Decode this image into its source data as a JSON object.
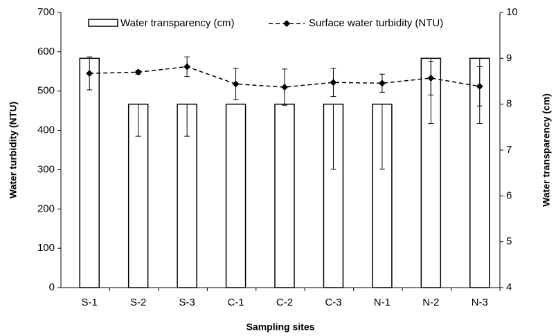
{
  "chart_data": {
    "type": "bar",
    "x_label": "Sampling sites",
    "y_label": "Water  turbidity (NTU)",
    "y2_label": "Water transparency (cm)",
    "categories": [
      "S-1",
      "S-2",
      "S-3",
      "C-1",
      "C-2",
      "C-3",
      "N-1",
      "N-2",
      "N-3"
    ],
    "series": [
      {
        "name": "Water transparency (cm)",
        "type": "bar",
        "axis": "y2",
        "color": "#ffffff",
        "values": [
          9,
          8,
          8,
          8,
          8,
          8,
          8,
          9,
          9
        ],
        "errors": [
          0,
          0.7,
          0.7,
          0,
          0,
          1.42,
          1.42,
          1.42,
          1.42
        ]
      },
      {
        "name": "Surface water turbidity (NTU)",
        "type": "line",
        "color": "#000000",
        "values": [
          545,
          548,
          562,
          518,
          510,
          522,
          520,
          533,
          512
        ],
        "errors": [
          42,
          5,
          25,
          40,
          46,
          36,
          23,
          43,
          50
        ]
      }
    ],
    "ylim": [
      0,
      700
    ],
    "yticks": [
      0,
      100,
      200,
      300,
      400,
      500,
      600,
      700
    ],
    "y2lim": [
      4,
      10
    ],
    "y2ticks": [
      4,
      5,
      6,
      7,
      8,
      9,
      10
    ],
    "legend": "top"
  }
}
